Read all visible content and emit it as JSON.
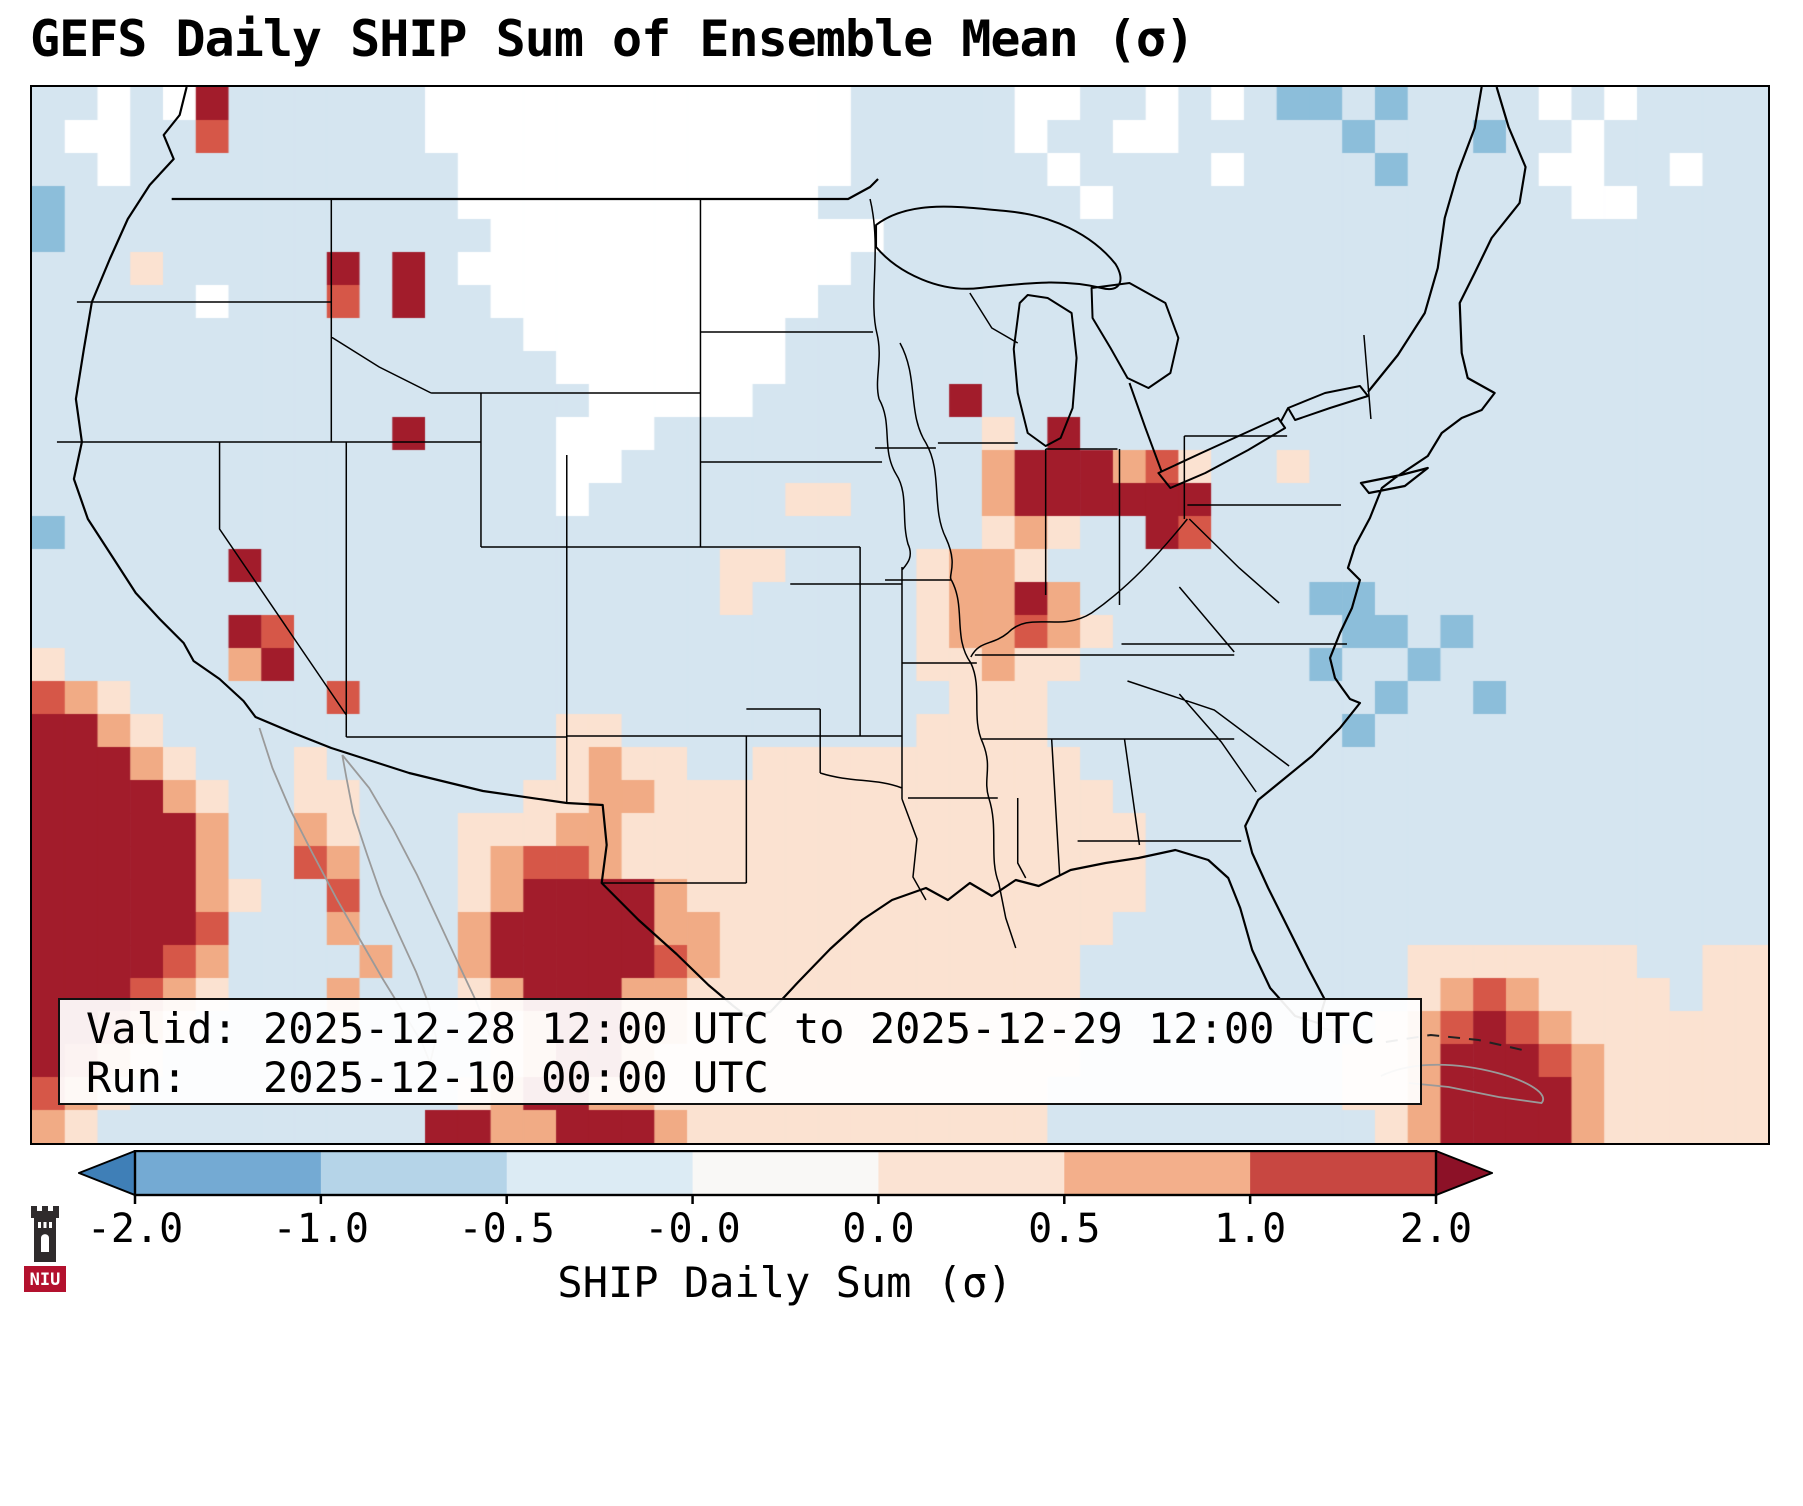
{
  "title": "GEFS Daily SHIP Sum of Ensemble Mean (σ)",
  "info_box": {
    "valid_line": "Valid: 2025-12-28 12:00 UTC to 2025-12-29 12:00 UTC",
    "run_line": "Run:   2025-12-10 00:00 UTC"
  },
  "colorbar": {
    "label": "SHIP Daily Sum (σ)",
    "ticks": [
      "-2.0",
      "-1.0",
      "-0.5",
      "-0.0",
      "0.0",
      "0.5",
      "1.0",
      "2.0"
    ],
    "segment_colors": [
      "#74aad3",
      "#b5d4e8",
      "#dcebf4",
      "#f9f8f6",
      "#fbe3d3",
      "#f3af8b",
      "#c84741"
    ],
    "extend_min_color": "#3f7fb7",
    "extend_max_color": "#8c1127"
  },
  "logo": {
    "text": "NIU"
  },
  "chart_data": {
    "type": "heatmap",
    "title": "GEFS Daily SHIP Sum of Ensemble Mean (σ)",
    "variable": "SHIP Daily Sum (σ)",
    "region": "Contiguous United States and northern Mexico",
    "colorbar_ticks": [
      -2.0,
      -1.0,
      -0.5,
      -0.0,
      0.0,
      0.5,
      1.0,
      2.0
    ],
    "colorbar_extends": "both",
    "cols": 53,
    "rows": 32,
    "legend": {
      ".": "near 0 (white)",
      "b": "-0.5 to 0 (light blue)",
      "B": "-1 to -0.5 (medium blue)",
      "o": "0 to 0.5 (pale orange)",
      "O": "0.5 to 1 (salmon)",
      "r": "1 to 2 (red)",
      "R": "greater than 2 (dark red)"
    },
    "palette": {
      ".": "#ffffff",
      "b": "#d5e5f0",
      "B": "#8cbeda",
      "o": "#fbe2d1",
      "O": "#f1ab85",
      "r": "#d65748",
      "R": "#a21c2b"
    },
    "grid_rows": [
      "bb.b.Rbbbbbb ............. bbbbb ..bb.b. bBBbBbbb b.b.bbbb",
      "b..bbrbbbbbb ............. bbbbb .bb..bb bbbBbbbB bb.bbbbb",
      "bb.bbbbbbbbb b............ bbbbb b.bbbb. bbbbBbbb b..bb.bb",
      "Bbbbbbbbbbbb b...........b bbbbb bb.bbbb bbbbbbbb bb..bbbb",
      "Bbbbbbbbbbbb bb........... .bbbb bbbbbbb bbbbbbbb bbbbbbbb",
      "bbbobbbbbRbR b............ bbbbb bbbbbbb bbbbbbbb bbbbbbbb",
      "bbbbb.bbbrbR bb..........b bbbbb bbbbbbb bbbbbbbb bbbbbbbb",
      "bbbbbbbbbbbb bbb........bb bbbbb bbbbbbb bbbbbbbb bbbbbbbb",
      "bbbbbbbbbbbb bbbb.......bb bbbbb bbbbbbb bbbbbbbb bbbbbbbb",
      "bbbbbbbbbbbb bbbbb.....bbb bbbRb bbbbbbb bbbbbbbb bbbbbbbb",
      "bbbbbbbbbbbR bbbb...bbbbbb bbbbo bRbbbbb bbbbbbbb bbbbbbbb",
      "bbbbbbbbbbbb bbbb..bbbbbbb bbbbO RRROrob bobbbbbb bbbbbbbb",
      "bbbbbbbbbbbb bbbb.bbbbbboo bbbbO RRRRRRb bbbbbbbb bbbbbbbb",
      "Bbbbbbbbbbbb bbbbbbbbbbbbb bbbbo OobbRrb bbbbbbbb bbbbbbbb",
      "bbbbbbRbbbbb bbbbbbbbboobb bboOO obbbbbb bbbbbbbb bbbbbbbb",
      "bbbbbbbbbbbb bbbbbbbbbobbb bboOO RObbbbb bbBBbbbb bbbbbbbb",
      "bbbbbbRrbbbb bbbbbbbbbbbbb bboOO rOobbbb bbbBBbBb bbbbbbbb",
      "obbbbbORbbbb bbbbbbbbbbbbb bbooO oobbbbb bbBbbBbb bbbbbbbb",
      "rOobbbbbbrbb bbbbbbbbbbbbb bbboo obbbbbb bbbbBbbB bbbbbbbb",
      "RROobbbbbbbb bbbboobbbbbbb bbooo obbbbbb bbbBbbbb bbbbbbbb",
      "RRROobbbobbb bbbboOoobbooo ooooo oobbbbb bbbbbbbb bbbbbbbb",
      "RRRROobboobb bbbooOOoooooo ooooo ooobbbb bbbbbbbb bbbbbbbb",
      "RRRRRObbOobb boooOOooooooo ooooo oooobbb bbbbbbbb bbbbbbbb",
      "RRRRRObbrObb boOrrOooooooo ooooo oooobbb bbbbbbbb bbbbbbbb",
      "RRRRROobbrbb boORRRROooooo ooooo oooobbb bbbbbbbb bbbbbbbb",
      "RRRRRrbbbObb bORRRRROOoooo ooooo ooobbbb bbbbbbbb bbbbbbbb",
      "RRRRrObbbbOb bORRRRRrOoooo ooooo oobbbbb bbbbbooo oooobboo",
      "RRRrOobbbObb boORRROOooooo ooooo oobbbbb bbbbboOr Oooooboo",
      "RRrOobbbbobb bboORROOooooo ooooo oobbbbb bbbboOrR rOoooooo",
      "RrOobbbbbbbb bboORROoooooo ooooo oobbbbb bbbooORR RrOooooo",
      "rOobbbbbbbbb boORROOoooooo ooooo obbbbbb bbbooORR RROooooo",
      "Oobbbbbbbbbb RROORRROooooo ooooo obbbbbb bbbboORR RROooooo"
    ]
  }
}
